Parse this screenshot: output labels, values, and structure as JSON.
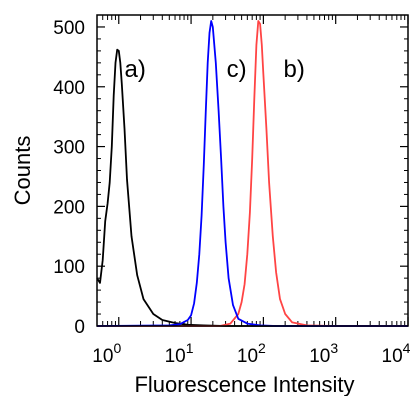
{
  "chart_data": {
    "type": "line",
    "xlabel": "Fluorescence Intensity",
    "ylabel": "Counts",
    "x_scale": "log",
    "xlim": [
      0.5,
      10000
    ],
    "ylim": [
      0,
      520
    ],
    "grid": false,
    "x_ticks": [
      {
        "value": 1,
        "base": "10",
        "exp": "0"
      },
      {
        "value": 10,
        "base": "10",
        "exp": "1"
      },
      {
        "value": 100,
        "base": "10",
        "exp": "2"
      },
      {
        "value": 1000,
        "base": "10",
        "exp": "3"
      },
      {
        "value": 10000,
        "base": "10",
        "exp": "4"
      }
    ],
    "y_ticks": [
      0,
      100,
      200,
      300,
      400,
      500
    ],
    "series": [
      {
        "name": "a)",
        "color": "#000000",
        "peak_label_at": [
          1.2,
          430
        ],
        "points": [
          [
            0.5,
            80
          ],
          [
            0.55,
            72
          ],
          [
            0.6,
            110
          ],
          [
            0.65,
            175
          ],
          [
            0.7,
            205
          ],
          [
            0.75,
            240
          ],
          [
            0.8,
            300
          ],
          [
            0.85,
            385
          ],
          [
            0.9,
            440
          ],
          [
            0.95,
            462
          ],
          [
            1.0,
            460
          ],
          [
            1.05,
            440
          ],
          [
            1.1,
            405
          ],
          [
            1.2,
            330
          ],
          [
            1.3,
            245
          ],
          [
            1.5,
            150
          ],
          [
            1.8,
            85
          ],
          [
            2.2,
            45
          ],
          [
            3.0,
            20
          ],
          [
            4.0,
            10
          ],
          [
            6.0,
            5
          ],
          [
            9.0,
            2
          ],
          [
            15.0,
            1
          ],
          [
            30.0,
            0
          ],
          [
            10000,
            0
          ]
        ]
      },
      {
        "name": "c)",
        "color": "#0000ff",
        "peak_label_at": [
          31,
          430
        ],
        "points": [
          [
            0.5,
            0
          ],
          [
            5,
            1
          ],
          [
            7,
            3
          ],
          [
            9,
            10
          ],
          [
            10,
            18
          ],
          [
            11,
            38
          ],
          [
            12,
            72
          ],
          [
            13,
            120
          ],
          [
            14,
            185
          ],
          [
            15,
            270
          ],
          [
            16,
            360
          ],
          [
            17,
            440
          ],
          [
            18,
            490
          ],
          [
            19,
            510
          ],
          [
            20,
            500
          ],
          [
            22,
            440
          ],
          [
            24,
            360
          ],
          [
            26,
            280
          ],
          [
            28,
            200
          ],
          [
            30,
            140
          ],
          [
            33,
            80
          ],
          [
            38,
            35
          ],
          [
            45,
            12
          ],
          [
            60,
            4
          ],
          [
            90,
            1
          ],
          [
            150,
            0
          ],
          [
            10000,
            0
          ]
        ]
      },
      {
        "name": "b)",
        "color": "#ff4444",
        "peak_label_at": [
          190,
          430
        ],
        "points": [
          [
            0.5,
            0
          ],
          [
            25,
            0
          ],
          [
            35,
            4
          ],
          [
            45,
            20
          ],
          [
            50,
            40
          ],
          [
            55,
            70
          ],
          [
            60,
            120
          ],
          [
            65,
            190
          ],
          [
            70,
            280
          ],
          [
            75,
            380
          ],
          [
            80,
            470
          ],
          [
            85,
            510
          ],
          [
            90,
            505
          ],
          [
            95,
            470
          ],
          [
            100,
            420
          ],
          [
            110,
            330
          ],
          [
            120,
            240
          ],
          [
            135,
            150
          ],
          [
            150,
            90
          ],
          [
            170,
            45
          ],
          [
            200,
            20
          ],
          [
            250,
            6
          ],
          [
            400,
            1
          ],
          [
            1000,
            0
          ],
          [
            10000,
            0
          ]
        ]
      }
    ]
  }
}
